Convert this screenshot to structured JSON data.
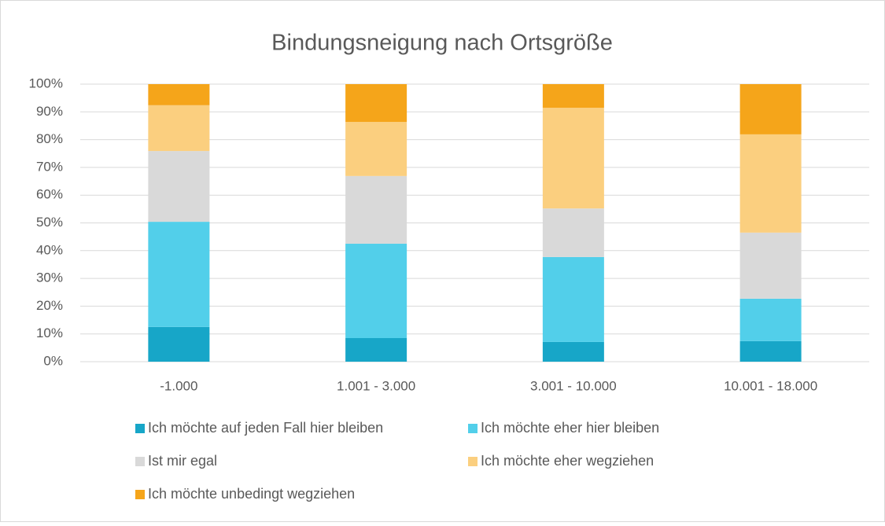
{
  "chart_data": {
    "type": "stacked_bar",
    "title": "Bindungsneigung nach Ortsgröße",
    "categories": [
      "-1.000",
      "1.001 - 3.000",
      "3.001 - 10.000",
      "10.001 - 18.000"
    ],
    "series": [
      {
        "name": "Ich möchte auf jeden Fall hier bleiben",
        "color": "#17a6c8",
        "values": [
          12.5,
          8.5,
          7.1,
          7.4
        ]
      },
      {
        "name": "Ich möchte eher hier bleiben",
        "color": "#52cfea",
        "values": [
          37.9,
          34,
          30.6,
          15.3
        ]
      },
      {
        "name": "Ist mir egal",
        "color": "#d9d9d9",
        "values": [
          25.5,
          24.4,
          17.5,
          23.8
        ]
      },
      {
        "name": "Ich möchte eher wegziehen",
        "color": "#fbcf7f",
        "values": [
          16.5,
          19.5,
          36.3,
          35.4
        ]
      },
      {
        "name": "Ich möchte unbedingt wegziehen",
        "color": "#f5a51a",
        "values": [
          7.6,
          13.6,
          8.5,
          18.1
        ]
      }
    ],
    "ylim": [
      0,
      100
    ],
    "yticks": [
      {
        "value": 0,
        "label": "0%"
      },
      {
        "value": 10,
        "label": "10%"
      },
      {
        "value": 20,
        "label": "20%"
      },
      {
        "value": 30,
        "label": "30%"
      },
      {
        "value": 40,
        "label": "40%"
      },
      {
        "value": 50,
        "label": "50%"
      },
      {
        "value": 60,
        "label": "60%"
      },
      {
        "value": 70,
        "label": "70%"
      },
      {
        "value": 80,
        "label": "80%"
      },
      {
        "value": 90,
        "label": "90%"
      },
      {
        "value": 100,
        "label": "100%"
      }
    ],
    "grid": true
  }
}
